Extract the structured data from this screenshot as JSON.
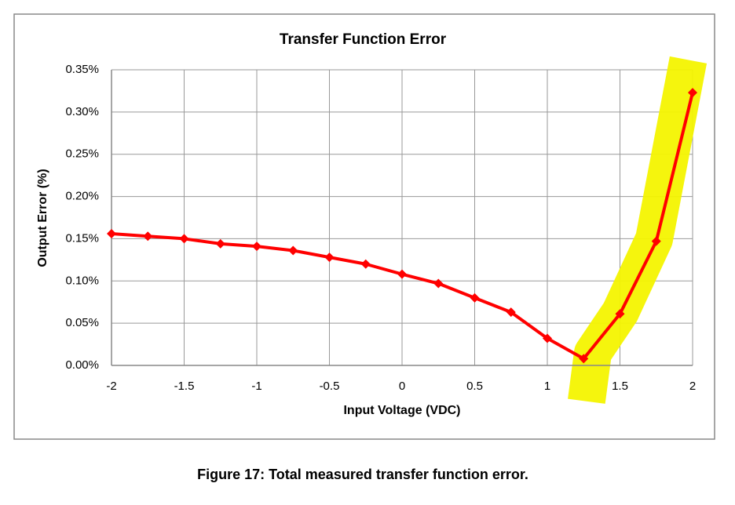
{
  "chart_data": {
    "type": "line",
    "title": "Transfer Function Error",
    "x_label": "Input Voltage (VDC)",
    "y_label": "Output Error (%)",
    "x": [
      -2,
      -1.75,
      -1.5,
      -1.25,
      -1,
      -0.75,
      -0.5,
      -0.25,
      0,
      0.25,
      0.5,
      0.75,
      1,
      1.25,
      1.5,
      1.75,
      2
    ],
    "values": [
      0.156,
      0.153,
      0.15,
      0.144,
      0.141,
      0.136,
      0.128,
      0.12,
      0.108,
      0.097,
      0.08,
      0.063,
      0.032,
      0.008,
      0.061,
      0.147,
      0.323
    ],
    "color": "#ff0000",
    "xlim": [
      -2,
      2
    ],
    "xticks": [
      -2,
      -1.5,
      -1,
      -0.5,
      0,
      0.5,
      1,
      1.5,
      2
    ],
    "ylim": [
      0,
      0.35
    ],
    "yticks": [
      {
        "value": 0,
        "label": "0.00%"
      },
      {
        "value": 0.05,
        "label": "0.05%"
      },
      {
        "value": 0.1,
        "label": "0.10%"
      },
      {
        "value": 0.15,
        "label": "0.15%"
      },
      {
        "value": 0.2,
        "label": "0.20%"
      },
      {
        "value": 0.25,
        "label": "0.25%"
      },
      {
        "value": 0.3,
        "label": "0.30%"
      },
      {
        "value": 0.35,
        "label": "0.35%"
      }
    ],
    "grid": true
  },
  "caption": "Figure 17: Total measured transfer function error."
}
